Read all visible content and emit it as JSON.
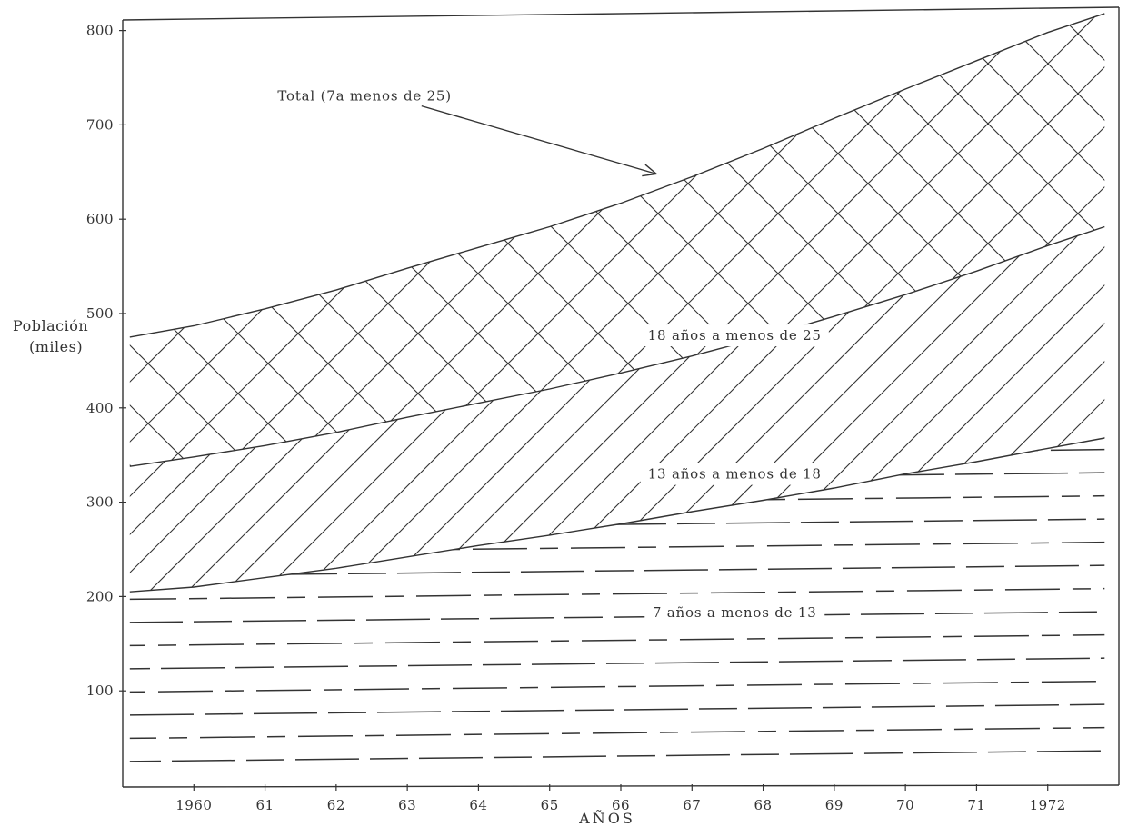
{
  "chart_data": {
    "type": "area",
    "stacked": true,
    "title": "",
    "xlabel": "AÑOS",
    "ylabel": "Población (miles)",
    "ylabel_lines": [
      "Población",
      "(miles)"
    ],
    "ylim": [
      0,
      800
    ],
    "xlim": [
      1959,
      1973
    ],
    "y_ticks": [
      100,
      200,
      300,
      400,
      500,
      600,
      700,
      800
    ],
    "x_ticks": [
      {
        "x": 1960,
        "label": "1960"
      },
      {
        "x": 1961,
        "label": "61"
      },
      {
        "x": 1962,
        "label": "62"
      },
      {
        "x": 1963,
        "label": "63"
      },
      {
        "x": 1964,
        "label": "64"
      },
      {
        "x": 1965,
        "label": "65"
      },
      {
        "x": 1966,
        "label": "66"
      },
      {
        "x": 1967,
        "label": "67"
      },
      {
        "x": 1968,
        "label": "68"
      },
      {
        "x": 1969,
        "label": "69"
      },
      {
        "x": 1970,
        "label": "70"
      },
      {
        "x": 1971,
        "label": "71"
      },
      {
        "x": 1972,
        "label": "1972"
      }
    ],
    "x": [
      1959.1,
      1960,
      1961,
      1962,
      1963,
      1964,
      1965,
      1966,
      1967,
      1968,
      1969,
      1970,
      1971,
      1972,
      1972.8
    ],
    "cumulative_series": [
      {
        "name": "7 años a menos de 13",
        "pattern": "dashes",
        "values": [
          205,
          210,
          220,
          230,
          242,
          254,
          265,
          277,
          290,
          302,
          315,
          330,
          343,
          357,
          368
        ]
      },
      {
        "name": "13 años a menos de 18",
        "pattern": "diagonal",
        "values": [
          338,
          348,
          360,
          374,
          390,
          405,
          420,
          437,
          455,
          475,
          497,
          520,
          545,
          572,
          592
        ]
      },
      {
        "name": "Total (7 a menos de 25)",
        "pattern": "crosshatch",
        "values": [
          475,
          487,
          505,
          525,
          548,
          570,
          592,
          617,
          645,
          675,
          707,
          738,
          768,
          798,
          818
        ]
      }
    ],
    "annotations": [
      {
        "text": "Total (7a menos de 25)",
        "x": 1962.4,
        "y": 726
      },
      {
        "text": "18 años a menos de 25",
        "x": 1967.6,
        "y": 472
      },
      {
        "text": "13 años a menos de 18",
        "x": 1967.6,
        "y": 325
      },
      {
        "text": "7 años a menos de 13",
        "x": 1967.6,
        "y": 178
      }
    ],
    "arrow": {
      "from": [
        1963.2,
        720
      ],
      "to": [
        1966.5,
        648
      ]
    },
    "grid": false,
    "legend": "none",
    "colors": {
      "ink": "#333333",
      "paper": "#ffffff"
    }
  }
}
